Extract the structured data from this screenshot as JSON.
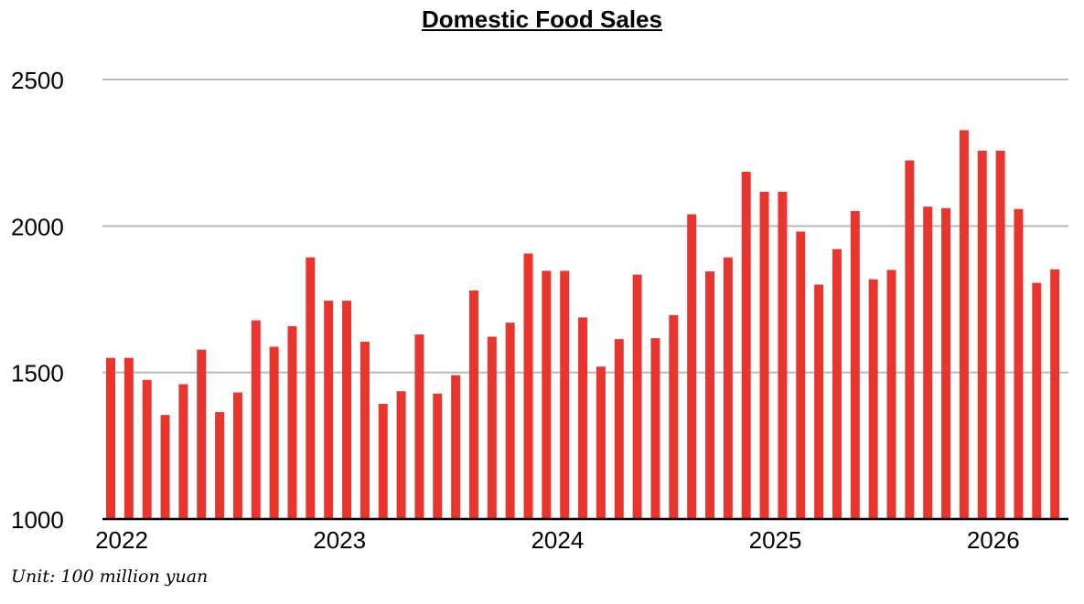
{
  "chart_data": {
    "type": "bar",
    "title": "Domestic Food Sales",
    "unit_note": "Unit: 100 million yuan",
    "xlabel": "",
    "ylabel": "",
    "ylim": [
      1000,
      2500
    ],
    "yticks": [
      1000,
      1500,
      2000,
      2500
    ],
    "xticks": [
      "2022",
      "2023",
      "2024",
      "2025",
      "2026"
    ],
    "grid": true,
    "legend": "none",
    "bar_color": "#e8352e",
    "grid_color": "#b8b8b8",
    "categories": [
      "2022-01",
      "2022-02",
      "2022-03",
      "2022-04",
      "2022-05",
      "2022-06",
      "2022-07",
      "2022-08",
      "2022-09",
      "2022-10",
      "2022-11",
      "2022-12",
      "2023-01",
      "2023-02",
      "2023-03",
      "2023-04",
      "2023-05",
      "2023-06",
      "2023-07",
      "2023-08",
      "2023-09",
      "2023-10",
      "2023-11",
      "2023-12",
      "2024-01",
      "2024-02",
      "2024-03",
      "2024-04",
      "2024-05",
      "2024-06",
      "2024-07",
      "2024-08",
      "2024-09",
      "2024-10",
      "2024-11",
      "2024-12",
      "2025-01",
      "2025-02",
      "2025-03",
      "2025-04",
      "2025-05",
      "2025-06",
      "2025-07",
      "2025-08",
      "2025-09",
      "2025-10",
      "2025-11",
      "2025-12",
      "2026-01",
      "2026-02",
      "2026-03",
      "2026-04",
      "2026-05"
    ],
    "values": [
      1550,
      1550,
      1475,
      1355,
      1460,
      1578,
      1365,
      1432,
      1678,
      1588,
      1658,
      1893,
      1745,
      1745,
      1605,
      1393,
      1436,
      1630,
      1428,
      1491,
      1780,
      1622,
      1670,
      1906,
      1847,
      1847,
      1688,
      1520,
      1614,
      1834,
      1617,
      1696,
      2040,
      1845,
      1893,
      2185,
      2117,
      2117,
      1981,
      1800,
      1921,
      2051,
      1818,
      1850,
      2224,
      2066,
      2061,
      2327,
      2257,
      2257,
      2058,
      1806,
      1852
    ]
  }
}
